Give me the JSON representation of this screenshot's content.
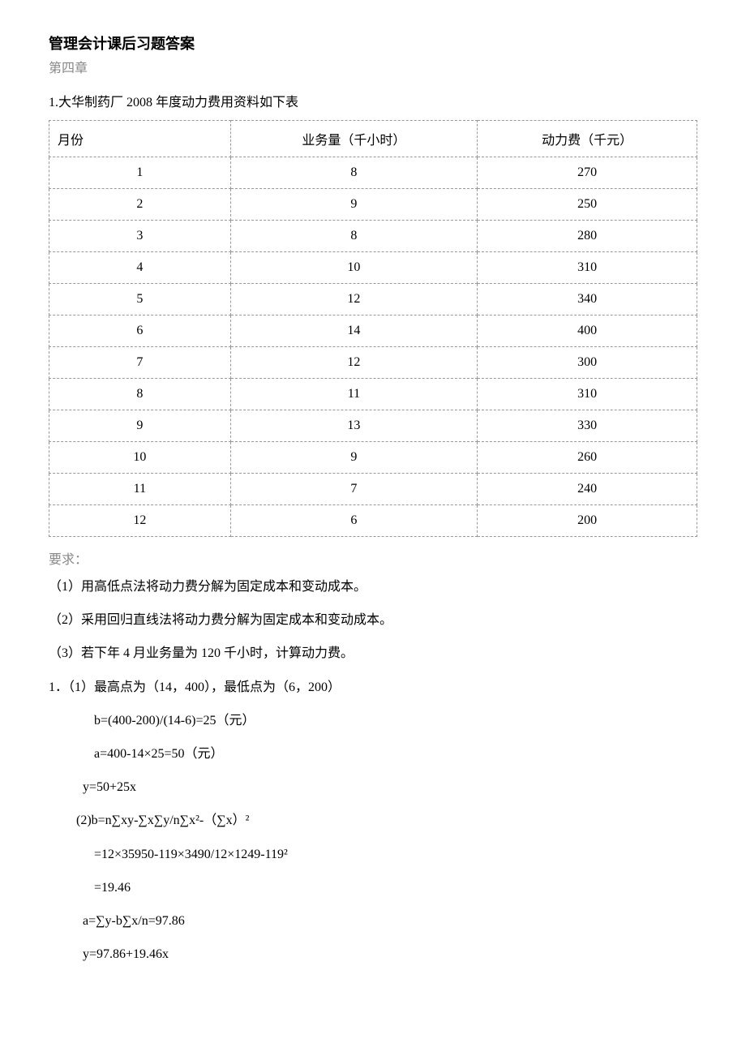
{
  "title": "管理会计课后习题答案",
  "chapter": "第四章",
  "intro": "1.大华制药厂 2008 年度动力费用资料如下表",
  "table": {
    "columns": [
      "月份",
      "业务量（千小时）",
      "动力费（千元）"
    ],
    "rows": [
      [
        "1",
        "8",
        "270"
      ],
      [
        "2",
        "9",
        "250"
      ],
      [
        "3",
        "8",
        "280"
      ],
      [
        "4",
        "10",
        "310"
      ],
      [
        "5",
        "12",
        "340"
      ],
      [
        "6",
        "14",
        "400"
      ],
      [
        "7",
        "12",
        "300"
      ],
      [
        "8",
        "11",
        "310"
      ],
      [
        "9",
        "13",
        "330"
      ],
      [
        "10",
        "9",
        "260"
      ],
      [
        "11",
        "7",
        "240"
      ],
      [
        "12",
        "6",
        "200"
      ]
    ],
    "col_widths": [
      "28%",
      "36%",
      "36%"
    ],
    "border_style": "dashed",
    "border_color": "#999999"
  },
  "req_label": "要求：",
  "requirements": [
    "（1）用高低点法将动力费分解为固定成本和变动成本。",
    "（2）采用回归直线法将动力费分解为固定成本和变动成本。",
    "（3）若下年 4 月业务量为 120 千小时，计算动力费。"
  ],
  "solution": {
    "l1": "1．（1）最高点为（14，400），最低点为（6，200）",
    "l2": "b=(400-200)/(14-6)=25（元）",
    "l3": "a=400-14×25=50（元）",
    "l4": "y=50+25x",
    "l5": "(2)b=n∑xy-∑x∑y/n∑x²-（∑x）²",
    "l6": "=12×35950-119×3490/12×1249-119²",
    "l7": "=19.46",
    "l8": "a=∑y-b∑x/n=97.86",
    "l9": "y=97.86+19.46x"
  }
}
